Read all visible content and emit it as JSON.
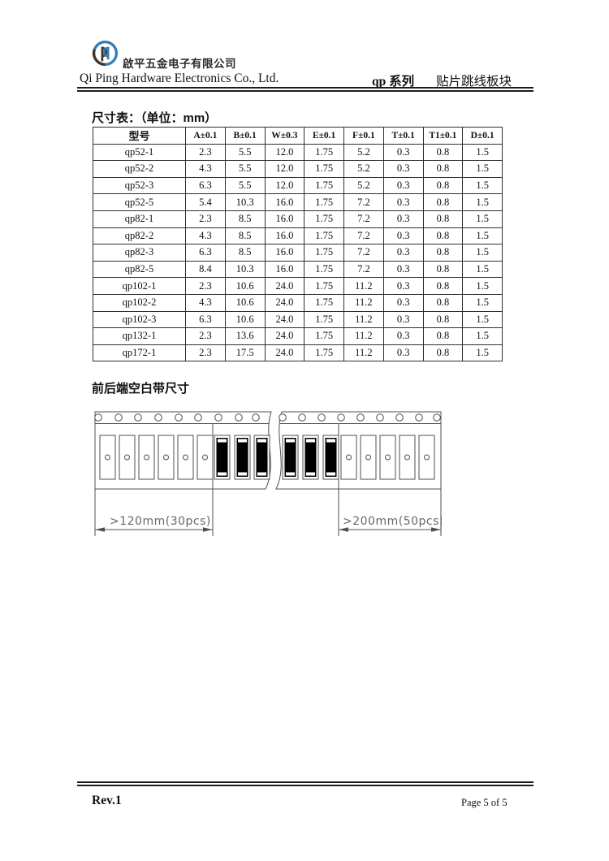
{
  "header": {
    "company_name_cn": "啟平五金电子有限公司",
    "company_name_en": "Qi Ping Hardware Electronics Co., Ltd.",
    "series_label": "qp 系列",
    "product_label": "贴片跳线板块",
    "logo_blue": "#2f7db8",
    "logo_brown": "#443527"
  },
  "size_table": {
    "title": "尺寸表：（单位：mm）",
    "columns": [
      "型号",
      "A±0.1",
      "B±0.1",
      "W±0.3",
      "E±0.1",
      "F±0.1",
      "T±0.1",
      "T1±0.1",
      "D±0.1"
    ],
    "rows": [
      [
        "qp52-1",
        "2.3",
        "5.5",
        "12.0",
        "1.75",
        "5.2",
        "0.3",
        "0.8",
        "1.5"
      ],
      [
        "qp52-2",
        "4.3",
        "5.5",
        "12.0",
        "1.75",
        "5.2",
        "0.3",
        "0.8",
        "1.5"
      ],
      [
        "qp52-3",
        "6.3",
        "5.5",
        "12.0",
        "1.75",
        "5.2",
        "0.3",
        "0.8",
        "1.5"
      ],
      [
        "qp52-5",
        "5.4",
        "10.3",
        "16.0",
        "1.75",
        "7.2",
        "0.3",
        "0.8",
        "1.5"
      ],
      [
        "qp82-1",
        "2.3",
        "8.5",
        "16.0",
        "1.75",
        "7.2",
        "0.3",
        "0.8",
        "1.5"
      ],
      [
        "qp82-2",
        "4.3",
        "8.5",
        "16.0",
        "1.75",
        "7.2",
        "0.3",
        "0.8",
        "1.5"
      ],
      [
        "qp82-3",
        "6.3",
        "8.5",
        "16.0",
        "1.75",
        "7.2",
        "0.3",
        "0.8",
        "1.5"
      ],
      [
        "qp82-5",
        "8.4",
        "10.3",
        "16.0",
        "1.75",
        "7.2",
        "0.3",
        "0.8",
        "1.5"
      ],
      [
        "qp102-1",
        "2.3",
        "10.6",
        "24.0",
        "1.75",
        "11.2",
        "0.3",
        "0.8",
        "1.5"
      ],
      [
        "qp102-2",
        "4.3",
        "10.6",
        "24.0",
        "1.75",
        "11.2",
        "0.3",
        "0.8",
        "1.5"
      ],
      [
        "qp102-3",
        "6.3",
        "10.6",
        "24.0",
        "1.75",
        "11.2",
        "0.3",
        "0.8",
        "1.5"
      ],
      [
        "qp132-1",
        "2.3",
        "13.6",
        "24.0",
        "1.75",
        "11.2",
        "0.3",
        "0.8",
        "1.5"
      ],
      [
        "qp172-1",
        "2.3",
        "17.5",
        "24.0",
        "1.75",
        "11.2",
        "0.3",
        "0.8",
        "1.5"
      ]
    ]
  },
  "tape_section": {
    "title": "前后端空白带尺寸",
    "left_dimension_label": ">120mm(30pcs)",
    "right_dimension_label": ">200mm(50pcs)"
  },
  "footer": {
    "revision": "Rev.1",
    "page_number": "Page 5 of 5"
  }
}
